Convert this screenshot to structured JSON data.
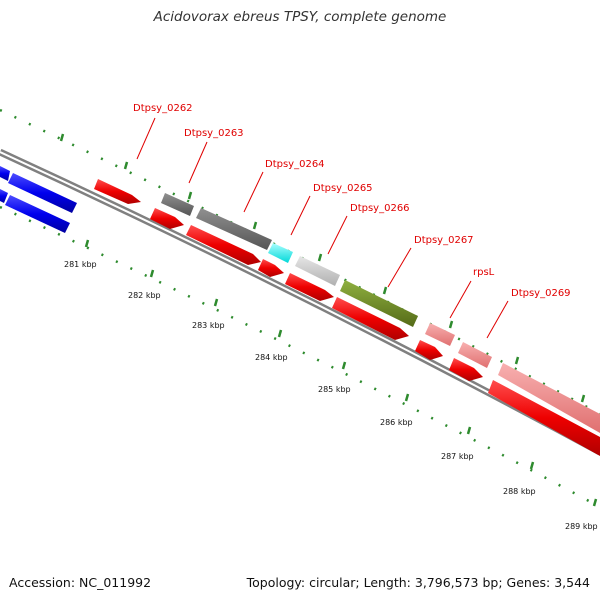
{
  "title": "Acidovorax ebreus TPSY, complete genome",
  "footer": {
    "accession": "Accession: NC_011992",
    "summary": "Topology: circular; Length: 3,796,573 bp; Genes: 3,544"
  },
  "colors": {
    "backbone": "#808080",
    "cds": "#ff0000",
    "blue_cds": "#0000ff",
    "dark_gray": "#6e6e6e",
    "cyan": "#00ffff",
    "light_gray": "#c8c8c8",
    "olive": "#6b8e23",
    "pink": "#f08080",
    "tick": "#2e8b2e",
    "label": "#e00000"
  },
  "gene_labels": [
    "Dtpsy_0262",
    "Dtpsy_0263",
    "Dtpsy_0264",
    "Dtpsy_0265",
    "Dtpsy_0266",
    "Dtpsy_0267",
    "rpsL",
    "Dtpsy_0269"
  ],
  "kbp_labels": [
    "281 kbp",
    "282 kbp",
    "283 kbp",
    "284 kbp",
    "285 kbp",
    "286 kbp",
    "287 kbp",
    "288 kbp",
    "289 kbp"
  ]
}
